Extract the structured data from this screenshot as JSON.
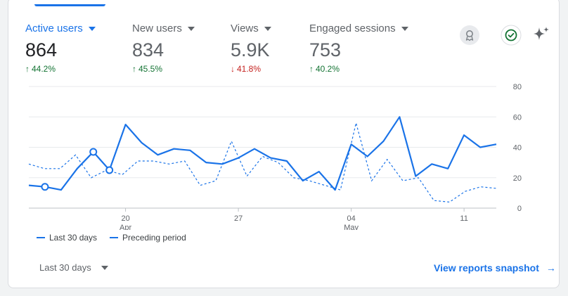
{
  "metrics": [
    {
      "label": "Active users",
      "value": "864",
      "delta": "44.2%",
      "direction": "up"
    },
    {
      "label": "New users",
      "value": "834",
      "delta": "45.5%",
      "direction": "up"
    },
    {
      "label": "Views",
      "value": "5.9K",
      "delta": "41.8%",
      "direction": "down"
    },
    {
      "label": "Engaged sessions",
      "value": "753",
      "delta": "40.2%",
      "direction": "up"
    }
  ],
  "arrows": {
    "up": "↑",
    "down": "↓"
  },
  "icons": {
    "insights": "insights-badge-icon",
    "check": "check-circle-icon",
    "sparkle": "sparkle-icon"
  },
  "legend": {
    "current": "Last 30 days",
    "previous": "Preceding period"
  },
  "footer": {
    "range": "Last 30 days",
    "snapshot": "View reports snapshot",
    "snapshot_arrow": "→"
  },
  "colors": {
    "accent": "#1a73e8",
    "up": "#137333",
    "down": "#c5221f"
  },
  "chart_data": {
    "type": "line",
    "x_ticks": [
      {
        "index": 6,
        "day": "20",
        "month": "Apr"
      },
      {
        "index": 13,
        "day": "27",
        "month": ""
      },
      {
        "index": 20,
        "day": "04",
        "month": "May"
      },
      {
        "index": 27,
        "day": "11",
        "month": ""
      }
    ],
    "ylim": [
      0,
      80
    ],
    "yticks": [
      0,
      20,
      40,
      60,
      80
    ],
    "grid": true,
    "series": [
      {
        "name": "Last 30 days",
        "style": "solid",
        "values": [
          15,
          14,
          12,
          26,
          37,
          25,
          55,
          43,
          35,
          39,
          38,
          30,
          29,
          33,
          39,
          33,
          31,
          18,
          24,
          12,
          42,
          34,
          44,
          60,
          21,
          29,
          26,
          48,
          40,
          42
        ],
        "markers": [
          1,
          4,
          5
        ]
      },
      {
        "name": "Preceding period",
        "style": "dashed",
        "values": [
          29,
          26,
          26,
          35,
          20,
          25,
          22,
          31,
          31,
          29,
          31,
          15,
          18,
          44,
          21,
          34,
          30,
          20,
          18,
          15,
          12,
          56,
          18,
          32,
          18,
          20,
          5,
          4,
          11,
          14,
          13
        ]
      }
    ]
  }
}
